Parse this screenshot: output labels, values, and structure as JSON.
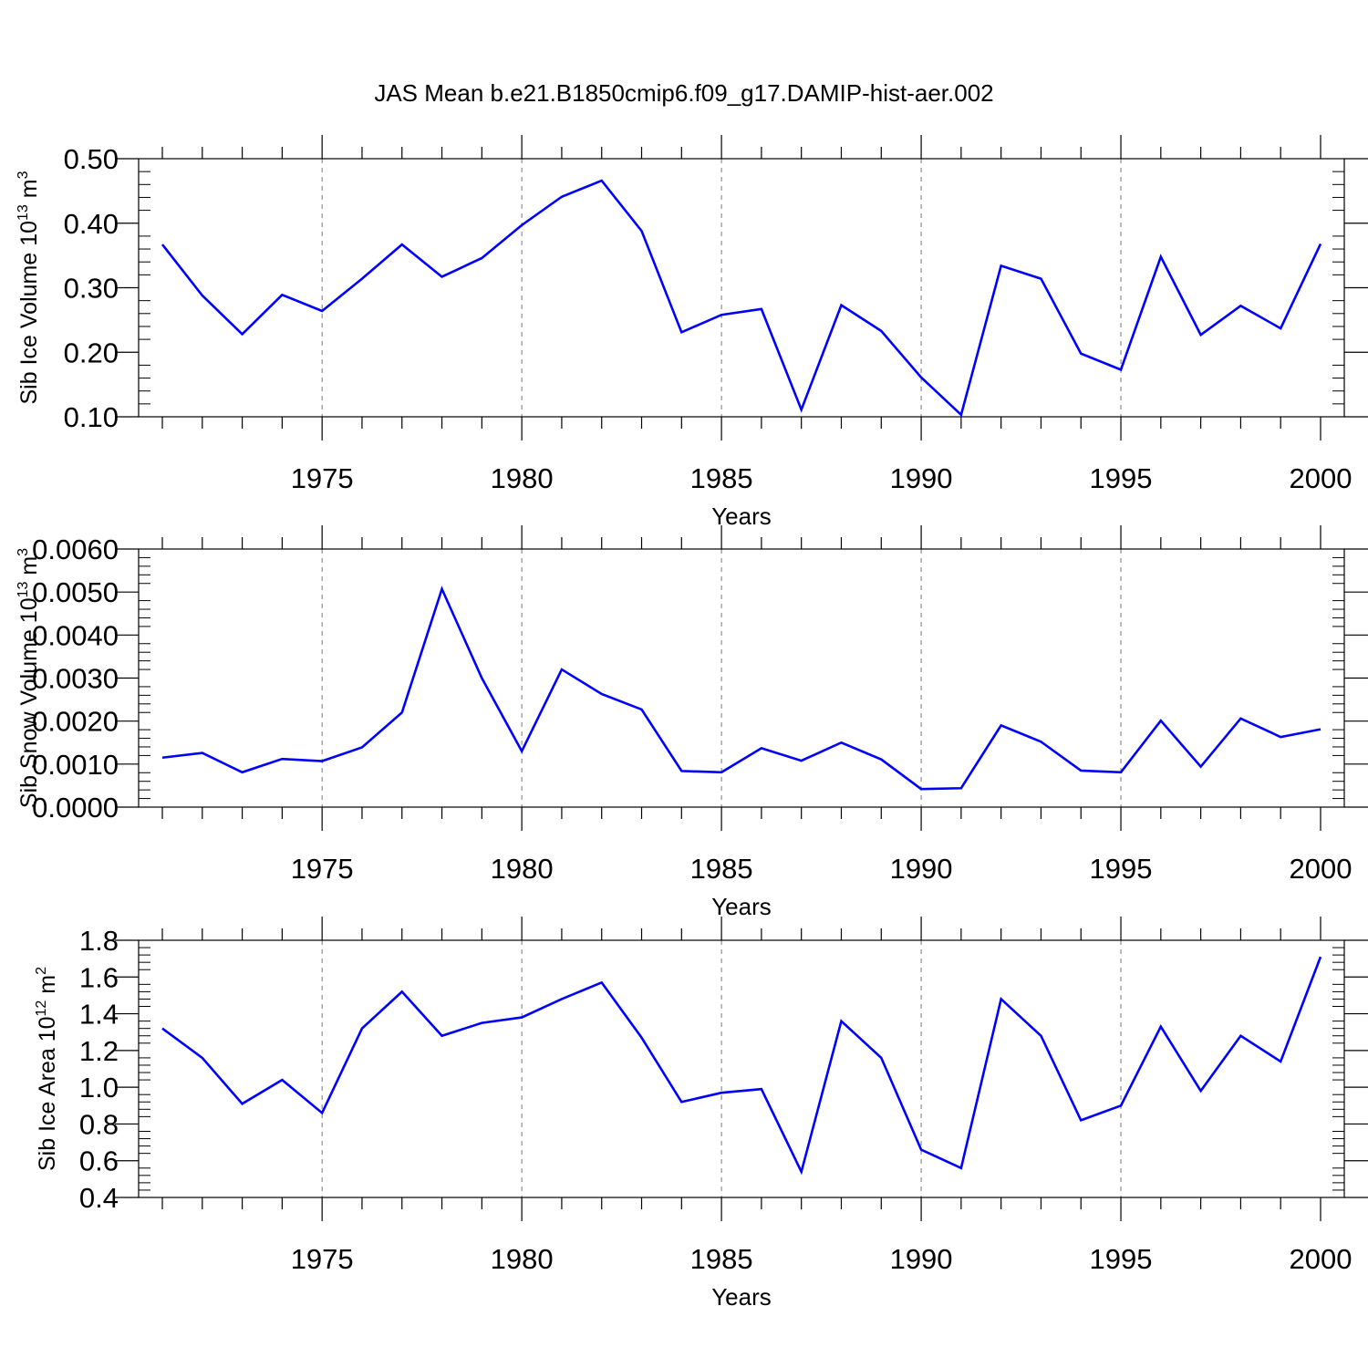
{
  "title": "JAS Mean b.e21.B1850cmip6.f09_g17.DAMIP-hist-aer.002",
  "line_color": "#0000ff",
  "chart_data": [
    {
      "type": "line",
      "xlabel": "Years",
      "ylabel_main": "Sib Ice Volume 10",
      "ylabel_exp": "13",
      "ylabel_unit": " m",
      "ylabel_unit_exp": "3",
      "xlim": [
        1971,
        2000
      ],
      "ylim": [
        0.1,
        0.5
      ],
      "xticks": [
        1975,
        1980,
        1985,
        1990,
        1995,
        2000
      ],
      "yticks": [
        "0.10",
        "0.20",
        "0.30",
        "0.40",
        "0.50"
      ],
      "series": [
        {
          "name": "Sib Ice Volume",
          "x": [
            1971,
            1972,
            1973,
            1974,
            1975,
            1976,
            1977,
            1978,
            1979,
            1980,
            1981,
            1982,
            1983,
            1984,
            1985,
            1986,
            1987,
            1988,
            1989,
            1990,
            1991,
            1992,
            1993,
            1994,
            1995,
            1996,
            1997,
            1998,
            1999,
            2000
          ],
          "values": [
            0.367,
            0.288,
            0.228,
            0.289,
            0.264,
            0.314,
            0.367,
            0.317,
            0.346,
            0.397,
            0.441,
            0.466,
            0.388,
            0.231,
            0.258,
            0.267,
            0.111,
            0.273,
            0.233,
            0.161,
            0.103,
            0.334,
            0.314,
            0.198,
            0.173,
            0.348,
            0.227,
            0.272,
            0.237,
            0.368
          ]
        }
      ]
    },
    {
      "type": "line",
      "xlabel": "Years",
      "ylabel_main": "Sib Snow Volume 10",
      "ylabel_exp": "13",
      "ylabel_unit": " m",
      "ylabel_unit_exp": "3",
      "xlim": [
        1971,
        2000
      ],
      "ylim": [
        0.0,
        0.006
      ],
      "xticks": [
        1975,
        1980,
        1985,
        1990,
        1995,
        2000
      ],
      "yticks": [
        "0.0000",
        "0.0010",
        "0.0020",
        "0.0030",
        "0.0040",
        "0.0050",
        "0.0060"
      ],
      "series": [
        {
          "name": "Sib Snow Volume",
          "x": [
            1971,
            1972,
            1973,
            1974,
            1975,
            1976,
            1977,
            1978,
            1979,
            1980,
            1981,
            1982,
            1983,
            1984,
            1985,
            1986,
            1987,
            1988,
            1989,
            1990,
            1991,
            1992,
            1993,
            1994,
            1995,
            1996,
            1997,
            1998,
            1999,
            2000
          ],
          "values": [
            0.00115,
            0.00126,
            0.00081,
            0.00112,
            0.00107,
            0.00139,
            0.0022,
            0.00507,
            0.003,
            0.0013,
            0.0032,
            0.00263,
            0.00227,
            0.00084,
            0.00081,
            0.00137,
            0.00108,
            0.0015,
            0.00111,
            0.00042,
            0.00044,
            0.0019,
            0.00152,
            0.00085,
            0.00081,
            0.00201,
            0.00094,
            0.00206,
            0.00163,
            0.00181
          ]
        }
      ]
    },
    {
      "type": "line",
      "xlabel": "Years",
      "ylabel_main": "Sib Ice Area 10",
      "ylabel_exp": "12",
      "ylabel_unit": " m",
      "ylabel_unit_exp": "2",
      "xlim": [
        1971,
        2000
      ],
      "ylim": [
        0.4,
        1.8
      ],
      "xticks": [
        1975,
        1980,
        1985,
        1990,
        1995,
        2000
      ],
      "yticks": [
        "0.4",
        "0.6",
        "0.8",
        "1.0",
        "1.2",
        "1.4",
        "1.6",
        "1.8"
      ],
      "series": [
        {
          "name": "Sib Ice Area",
          "x": [
            1971,
            1972,
            1973,
            1974,
            1975,
            1976,
            1977,
            1978,
            1979,
            1980,
            1981,
            1982,
            1983,
            1984,
            1985,
            1986,
            1987,
            1988,
            1989,
            1990,
            1991,
            1992,
            1993,
            1994,
            1995,
            1996,
            1997,
            1998,
            1999,
            2000
          ],
          "values": [
            1.32,
            1.16,
            0.91,
            1.04,
            0.86,
            1.32,
            1.52,
            1.28,
            1.35,
            1.38,
            1.48,
            1.57,
            1.27,
            0.92,
            0.97,
            0.99,
            0.54,
            1.36,
            1.16,
            0.66,
            0.56,
            1.48,
            1.28,
            0.82,
            0.9,
            1.33,
            0.98,
            1.28,
            1.14,
            1.71
          ]
        }
      ]
    }
  ]
}
